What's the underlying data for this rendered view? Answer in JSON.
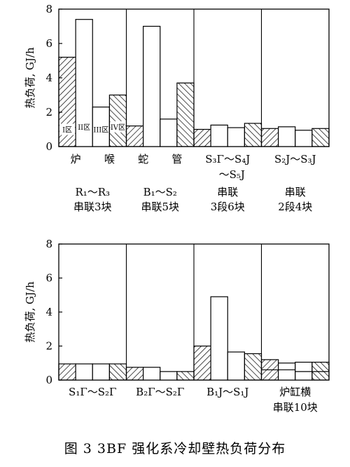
{
  "caption": "图 3   3BF 强化系冷却壁热负荷分布",
  "chart_data": [
    {
      "type": "bar",
      "ylabel": "热负荷, GJ/h",
      "ylim": [
        0,
        8
      ],
      "yticks": [
        0,
        2,
        4,
        6,
        8
      ],
      "groups": [
        {
          "names": [
            "炉",
            "喉"
          ],
          "sub": [
            "R₁～R₃",
            "串联3块"
          ],
          "bars": [
            {
              "value": 5.2,
              "pattern": "hatch-fwd"
            },
            {
              "value": 7.4,
              "pattern": "none"
            },
            {
              "value": 2.3,
              "pattern": "none"
            },
            {
              "value": 3.0,
              "pattern": "hatch-back"
            }
          ],
          "zones": [
            "I区",
            "II区",
            "III区",
            "IV区"
          ]
        },
        {
          "names": [
            "蛇",
            "管"
          ],
          "sub": [
            "B₁～S₂",
            "串联5块"
          ],
          "bars": [
            {
              "value": 1.2,
              "pattern": "hatch-fwd"
            },
            {
              "value": 7.0,
              "pattern": "none"
            },
            {
              "value": 1.6,
              "pattern": "none"
            },
            {
              "value": 3.7,
              "pattern": "hatch-back"
            }
          ]
        },
        {
          "names": [
            "S₃Γ～S₄J",
            "～S₅J"
          ],
          "sub": [
            "串联",
            "3段6块"
          ],
          "bars": [
            {
              "value": 1.0,
              "pattern": "hatch-fwd"
            },
            {
              "value": 1.25,
              "pattern": "none"
            },
            {
              "value": 1.1,
              "pattern": "none"
            },
            {
              "value": 1.35,
              "pattern": "hatch-back"
            }
          ]
        },
        {
          "names": [
            "S₂J～S₃J"
          ],
          "sub": [
            "串联",
            "2段4块"
          ],
          "bars": [
            {
              "value": 1.05,
              "pattern": "hatch-fwd"
            },
            {
              "value": 1.15,
              "pattern": "none"
            },
            {
              "value": 0.95,
              "pattern": "none"
            },
            {
              "value": 1.05,
              "pattern": "hatch-back"
            }
          ]
        }
      ]
    },
    {
      "type": "bar",
      "ylabel": "热负荷, GJ/h",
      "ylim": [
        0,
        8
      ],
      "yticks": [
        0,
        2,
        4,
        6,
        8
      ],
      "groups": [
        {
          "names": [
            "S₁Γ～S₂Γ"
          ],
          "bars": [
            {
              "value": 0.95,
              "pattern": "hatch-fwd"
            },
            {
              "value": 0.95,
              "pattern": "none"
            },
            {
              "value": 0.95,
              "pattern": "none"
            },
            {
              "value": 0.95,
              "pattern": "hatch-back"
            }
          ]
        },
        {
          "names": [
            "B₂Γ～S₂Γ"
          ],
          "bars": [
            {
              "value": 0.75,
              "pattern": "hatch-fwd"
            },
            {
              "value": 0.75,
              "pattern": "none"
            },
            {
              "value": 0.5,
              "pattern": "none"
            },
            {
              "value": 0.5,
              "pattern": "hatch-back"
            }
          ]
        },
        {
          "names": [
            "B₁J～S₁J"
          ],
          "bars": [
            {
              "value": 2.0,
              "pattern": "hatch-fwd"
            },
            {
              "value": 4.9,
              "pattern": "none"
            },
            {
              "value": 1.65,
              "pattern": "none"
            },
            {
              "value": 1.55,
              "pattern": "hatch-back"
            }
          ]
        },
        {
          "names": [
            "炉缸横",
            "串联10块"
          ],
          "bars": [
            {
              "value": 1.2,
              "pattern": "hatch-fwd",
              "base": 0.6
            },
            {
              "value": 1.0,
              "pattern": "none",
              "base": 0.6
            },
            {
              "value": 1.05,
              "pattern": "none",
              "base": 0.5
            },
            {
              "value": 1.05,
              "pattern": "hatch-back",
              "base": 0.5
            }
          ]
        }
      ]
    }
  ]
}
